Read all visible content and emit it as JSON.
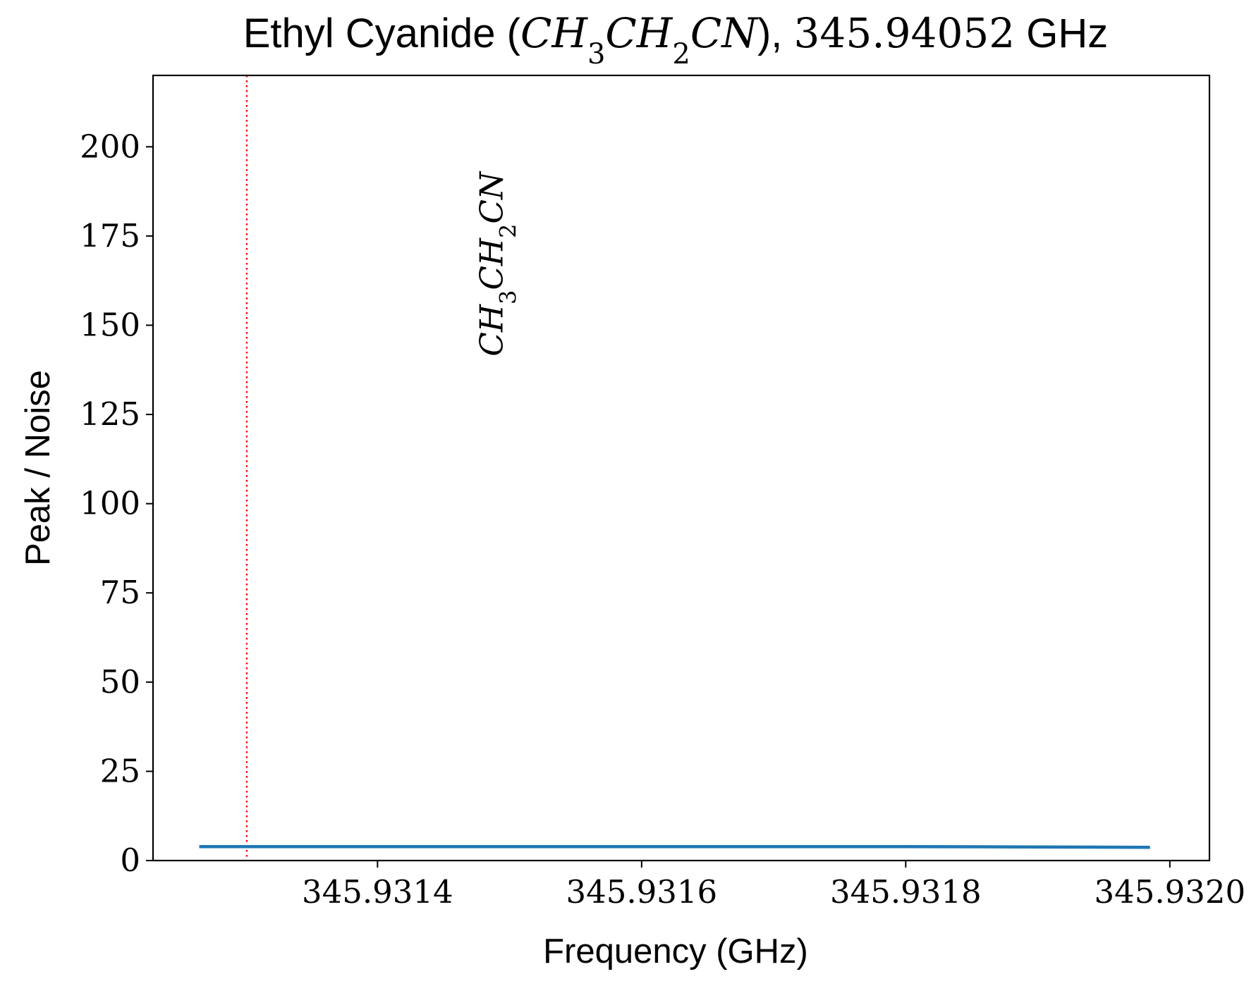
{
  "chart_data": {
    "type": "line",
    "title": {
      "prefix": "Ethyl Cyanide (",
      "formula": "CH3CH2CN",
      "suffix": "), ",
      "frequency": "345.94052",
      "unit": " GHz"
    },
    "xlabel": "Frequency (GHz)",
    "ylabel": "Peak / Noise",
    "xlim": [
      345.93123,
      345.93203
    ],
    "ylim": [
      0,
      220
    ],
    "xticks": [
      345.9314,
      345.9316,
      345.9318,
      345.932
    ],
    "xtick_labels": [
      "345.9314",
      "345.9316",
      "345.9318",
      "345.9320"
    ],
    "yticks": [
      0,
      25,
      50,
      75,
      100,
      125,
      150,
      175,
      200
    ],
    "ytick_labels": [
      "0",
      "25",
      "50",
      "75",
      "100",
      "125",
      "150",
      "175",
      "200"
    ],
    "grid": false,
    "series": [
      {
        "x": [
          345.931265,
          345.9313,
          345.9314,
          345.9315,
          345.9316,
          345.9317,
          345.9318,
          345.9319,
          345.931985
        ],
        "y": [
          3.9,
          3.9,
          3.9,
          3.9,
          3.9,
          3.9,
          3.9,
          3.8,
          3.7
        ],
        "color": "#1f77b4"
      }
    ],
    "vlines": [
      {
        "x": 345.931301,
        "color": "#ff0000",
        "style": "dotted"
      }
    ],
    "annotations": [
      {
        "text": "CH3CH2CN",
        "x": 345.931485,
        "y": 193,
        "rotation": 90
      }
    ]
  }
}
